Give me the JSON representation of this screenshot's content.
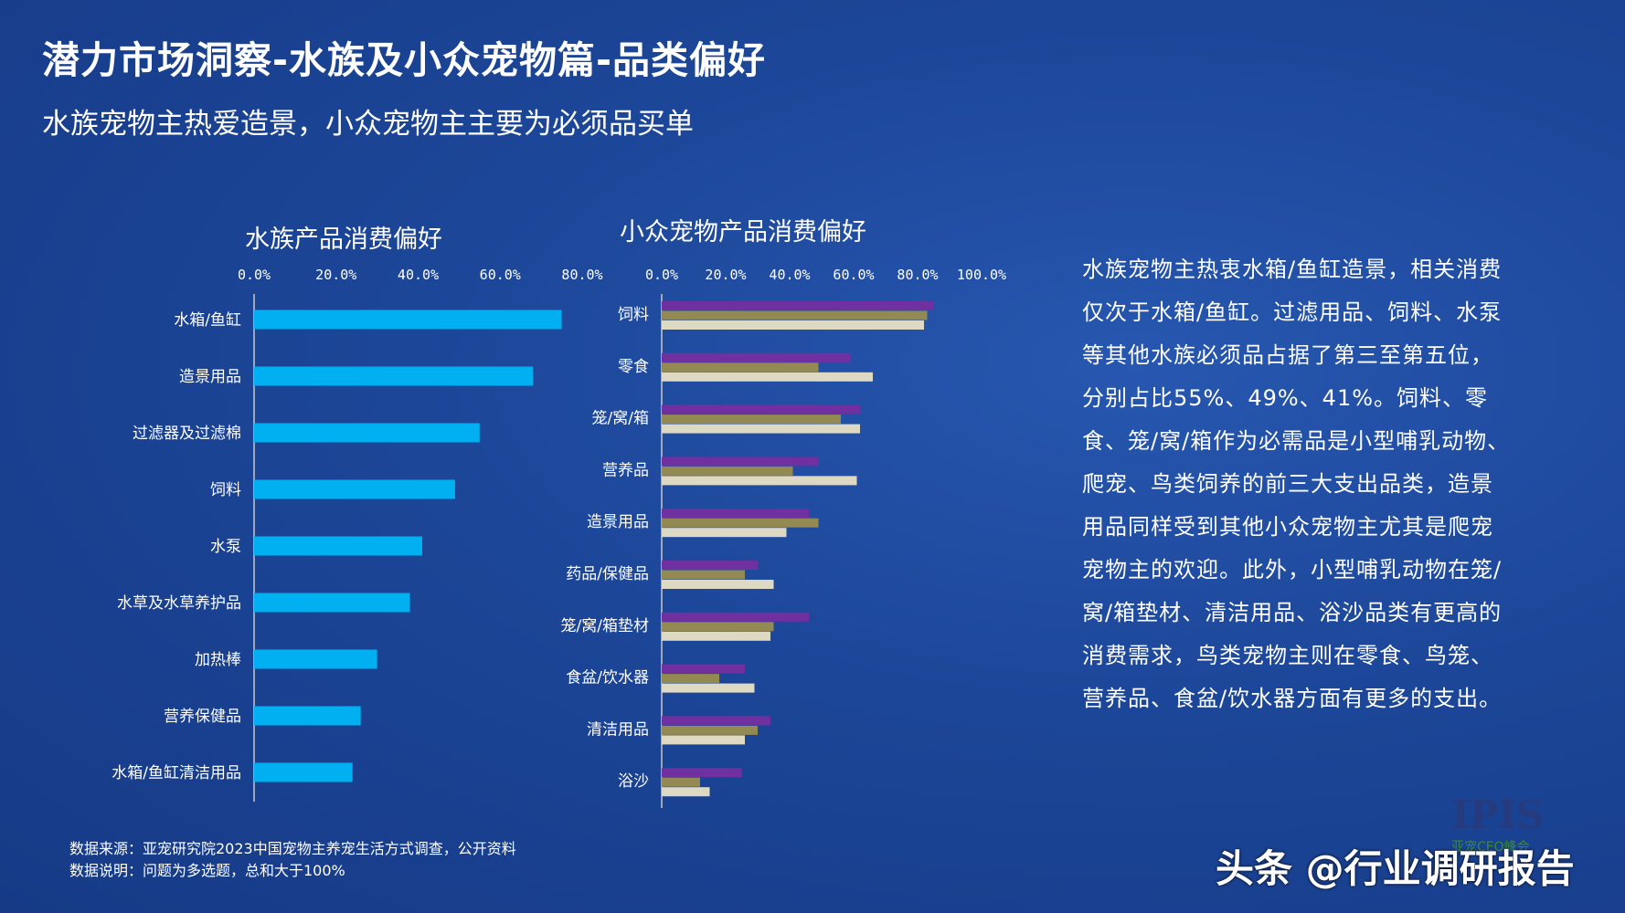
{
  "header": {
    "title": "潜力市场洞察-水族及小众宠物篇-品类偏好",
    "subtitle": "水族宠物主热爱造景，小众宠物主主要为必须品买单"
  },
  "chart_data": [
    {
      "type": "bar",
      "orientation": "horizontal",
      "title": "水族产品消费偏好",
      "categories": [
        "水箱/鱼缸",
        "造景用品",
        "过滤器及过滤棉",
        "饲料",
        "水泵",
        "水草及水草养护品",
        "加热棒",
        "营养保健品",
        "水箱/鱼缸清洁用品"
      ],
      "values": [
        75,
        68,
        55,
        49,
        41,
        38,
        30,
        26,
        24
      ],
      "xlim": [
        0,
        80
      ],
      "ticks": [
        "0.0%",
        "20.0%",
        "40.0%",
        "60.0%",
        "80.0%"
      ],
      "colors": [
        "#00b0f0"
      ]
    },
    {
      "type": "bar",
      "orientation": "horizontal",
      "title": "小众宠物产品消费偏好",
      "categories": [
        "饲料",
        "零食",
        "笼/窝/箱",
        "营养品",
        "造景用品",
        "药品/保健品",
        "笼/窝/箱垫材",
        "食盆/饮水器",
        "清洁用品",
        "浴沙"
      ],
      "series": [
        {
          "values": [
            85,
            59,
            62,
            49,
            46,
            30,
            46,
            26,
            34,
            25
          ]
        },
        {
          "values": [
            83,
            49,
            56,
            41,
            49,
            26,
            35,
            18,
            30,
            12
          ]
        },
        {
          "values": [
            82,
            66,
            62,
            61,
            39,
            35,
            34,
            29,
            26,
            15
          ]
        }
      ],
      "xlim": [
        0,
        100
      ],
      "ticks": [
        "0.0%",
        "20.0%",
        "40.0%",
        "60.0%",
        "80.0%",
        "100.0%"
      ],
      "colors": [
        "#7030a0",
        "#938953",
        "#ddd9c3"
      ]
    }
  ],
  "description": "水族宠物主热衷水箱/鱼缸造景，相关消费仅次于水箱/鱼缸。过滤用品、饲料、水泵等其他水族必须品占据了第三至第五位，分别占比55%、49%、41%。饲料、零食、笼/窝/箱作为必需品是小型哺乳动物、爬宠、鸟类饲养的前三大支出品类，造景用品同样受到其他小众宠物主尤其是爬宠宠物主的欢迎。此外，小型哺乳动物在笼/窝/箱垫材、清洁用品、浴沙品类有更高的消费需求，鸟类宠物主则在零食、鸟笼、营养品、食盆/饮水器方面有更多的支出。",
  "footer": {
    "source": "数据来源：亚宠研究院2023中国宠物主养宠生活方式调查，公开资料",
    "note": "数据说明：问题为多选题，总和大于100%"
  },
  "watermark": "头条 @行业调研报告",
  "logo": {
    "text": "IPIS",
    "sub": "亚宠CEO峰会"
  }
}
